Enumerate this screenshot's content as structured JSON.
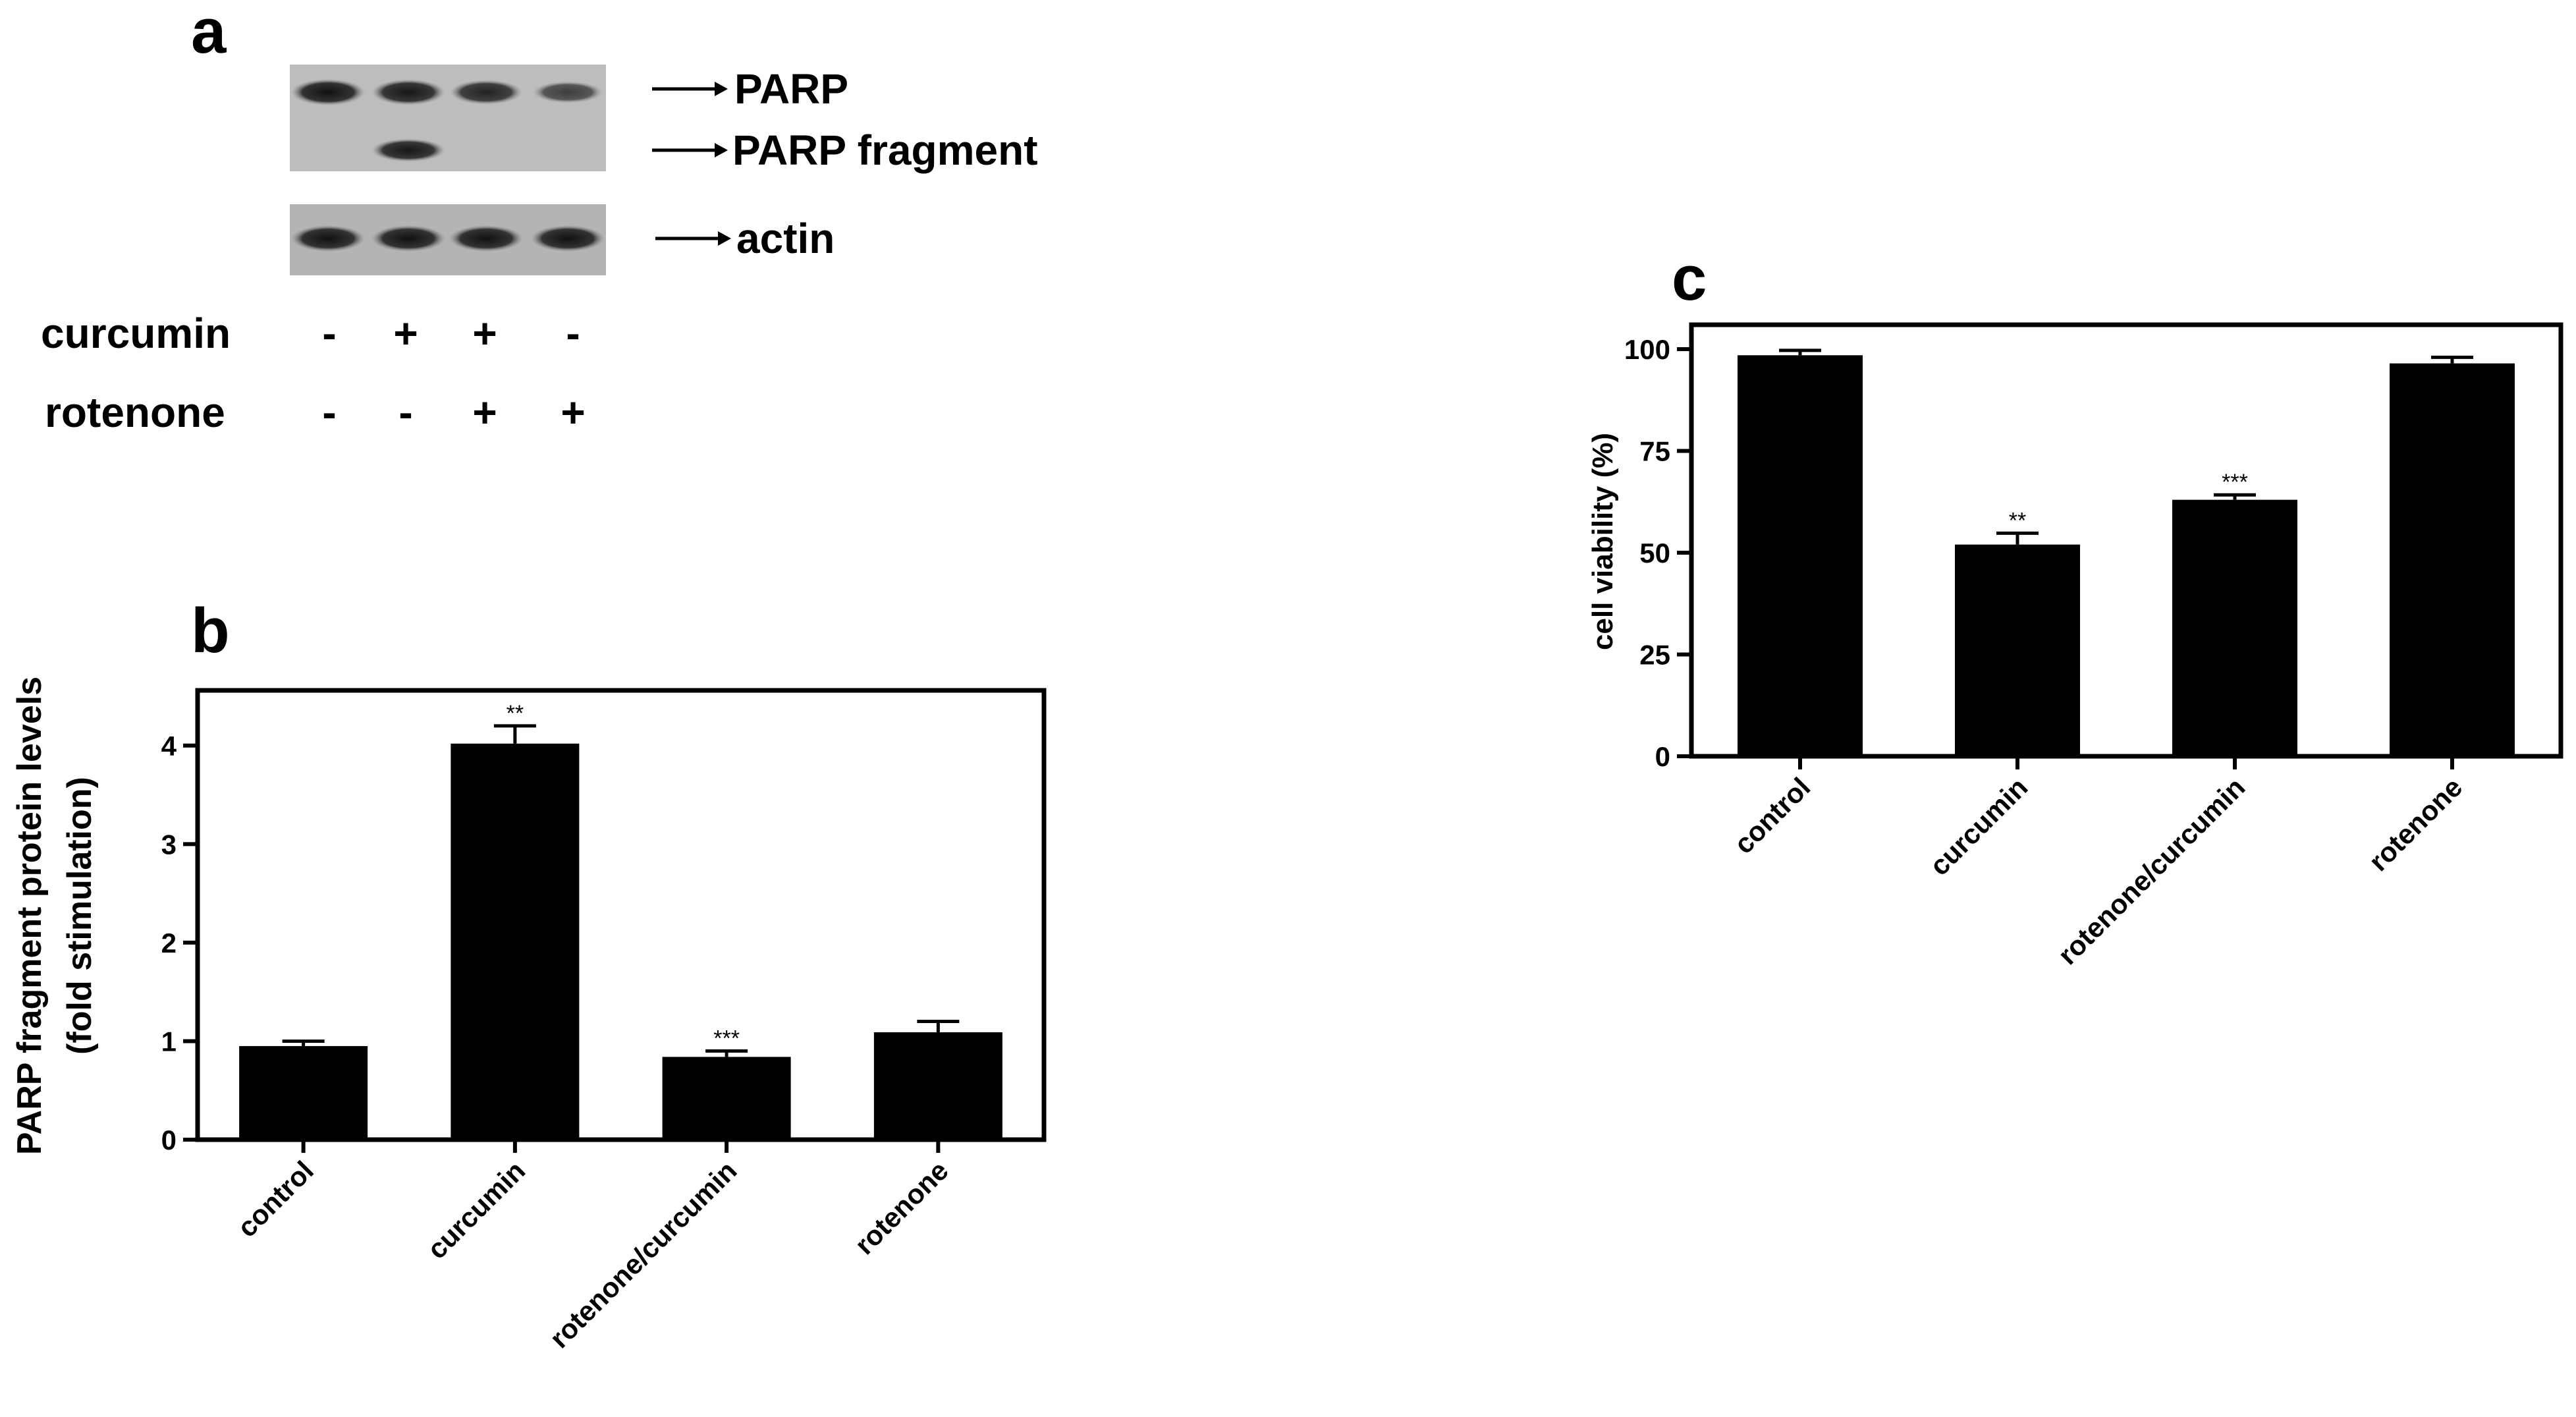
{
  "panel_labels": {
    "a": "a",
    "b": "b",
    "c": "c"
  },
  "blot": {
    "band_labels": [
      "PARP",
      "PARP fragment",
      "actin"
    ],
    "row_labels": [
      "curcumin",
      "rotenone"
    ],
    "signs": [
      [
        "-",
        "+",
        "+",
        "-"
      ],
      [
        "-",
        "-",
        "+",
        "+"
      ]
    ],
    "band_intensity": {
      "PARP": [
        1.0,
        0.95,
        0.85,
        0.6
      ],
      "PARP fragment": [
        0.0,
        0.95,
        0.0,
        0.0
      ],
      "actin": [
        1.0,
        1.0,
        1.0,
        1.0
      ]
    }
  },
  "chart_data": [
    {
      "type": "bar",
      "categories": [
        "control",
        "curcumin",
        "rotenone/curcumin",
        "rotenone"
      ],
      "values": [
        0.95,
        4.02,
        0.84,
        1.09
      ],
      "errors": [
        0.05,
        0.18,
        0.06,
        0.11
      ],
      "significance": [
        "",
        "**",
        "***",
        ""
      ],
      "title": "",
      "xlabel": "",
      "ylabel_lines": [
        "PARP fragment protein levels",
        "(fold stimulation)"
      ],
      "ylim": [
        0,
        4.5
      ],
      "yticks": [
        0,
        1,
        2,
        3,
        4
      ],
      "bar_color": "#000000",
      "grid": false
    },
    {
      "type": "bar",
      "categories": [
        "control",
        "curcumin",
        "rotenone/curcumin",
        "rotenone"
      ],
      "values": [
        98.5,
        52,
        63,
        96.5
      ],
      "errors": [
        1.2,
        2.8,
        1.2,
        1.5
      ],
      "significance": [
        "",
        "**",
        "***",
        ""
      ],
      "title": "",
      "xlabel": "",
      "ylabel_lines": [
        "cell viability (%)"
      ],
      "ylim": [
        0,
        100
      ],
      "yticks": [
        0,
        25,
        50,
        75,
        100
      ],
      "bar_color": "#000000",
      "grid": false
    }
  ]
}
